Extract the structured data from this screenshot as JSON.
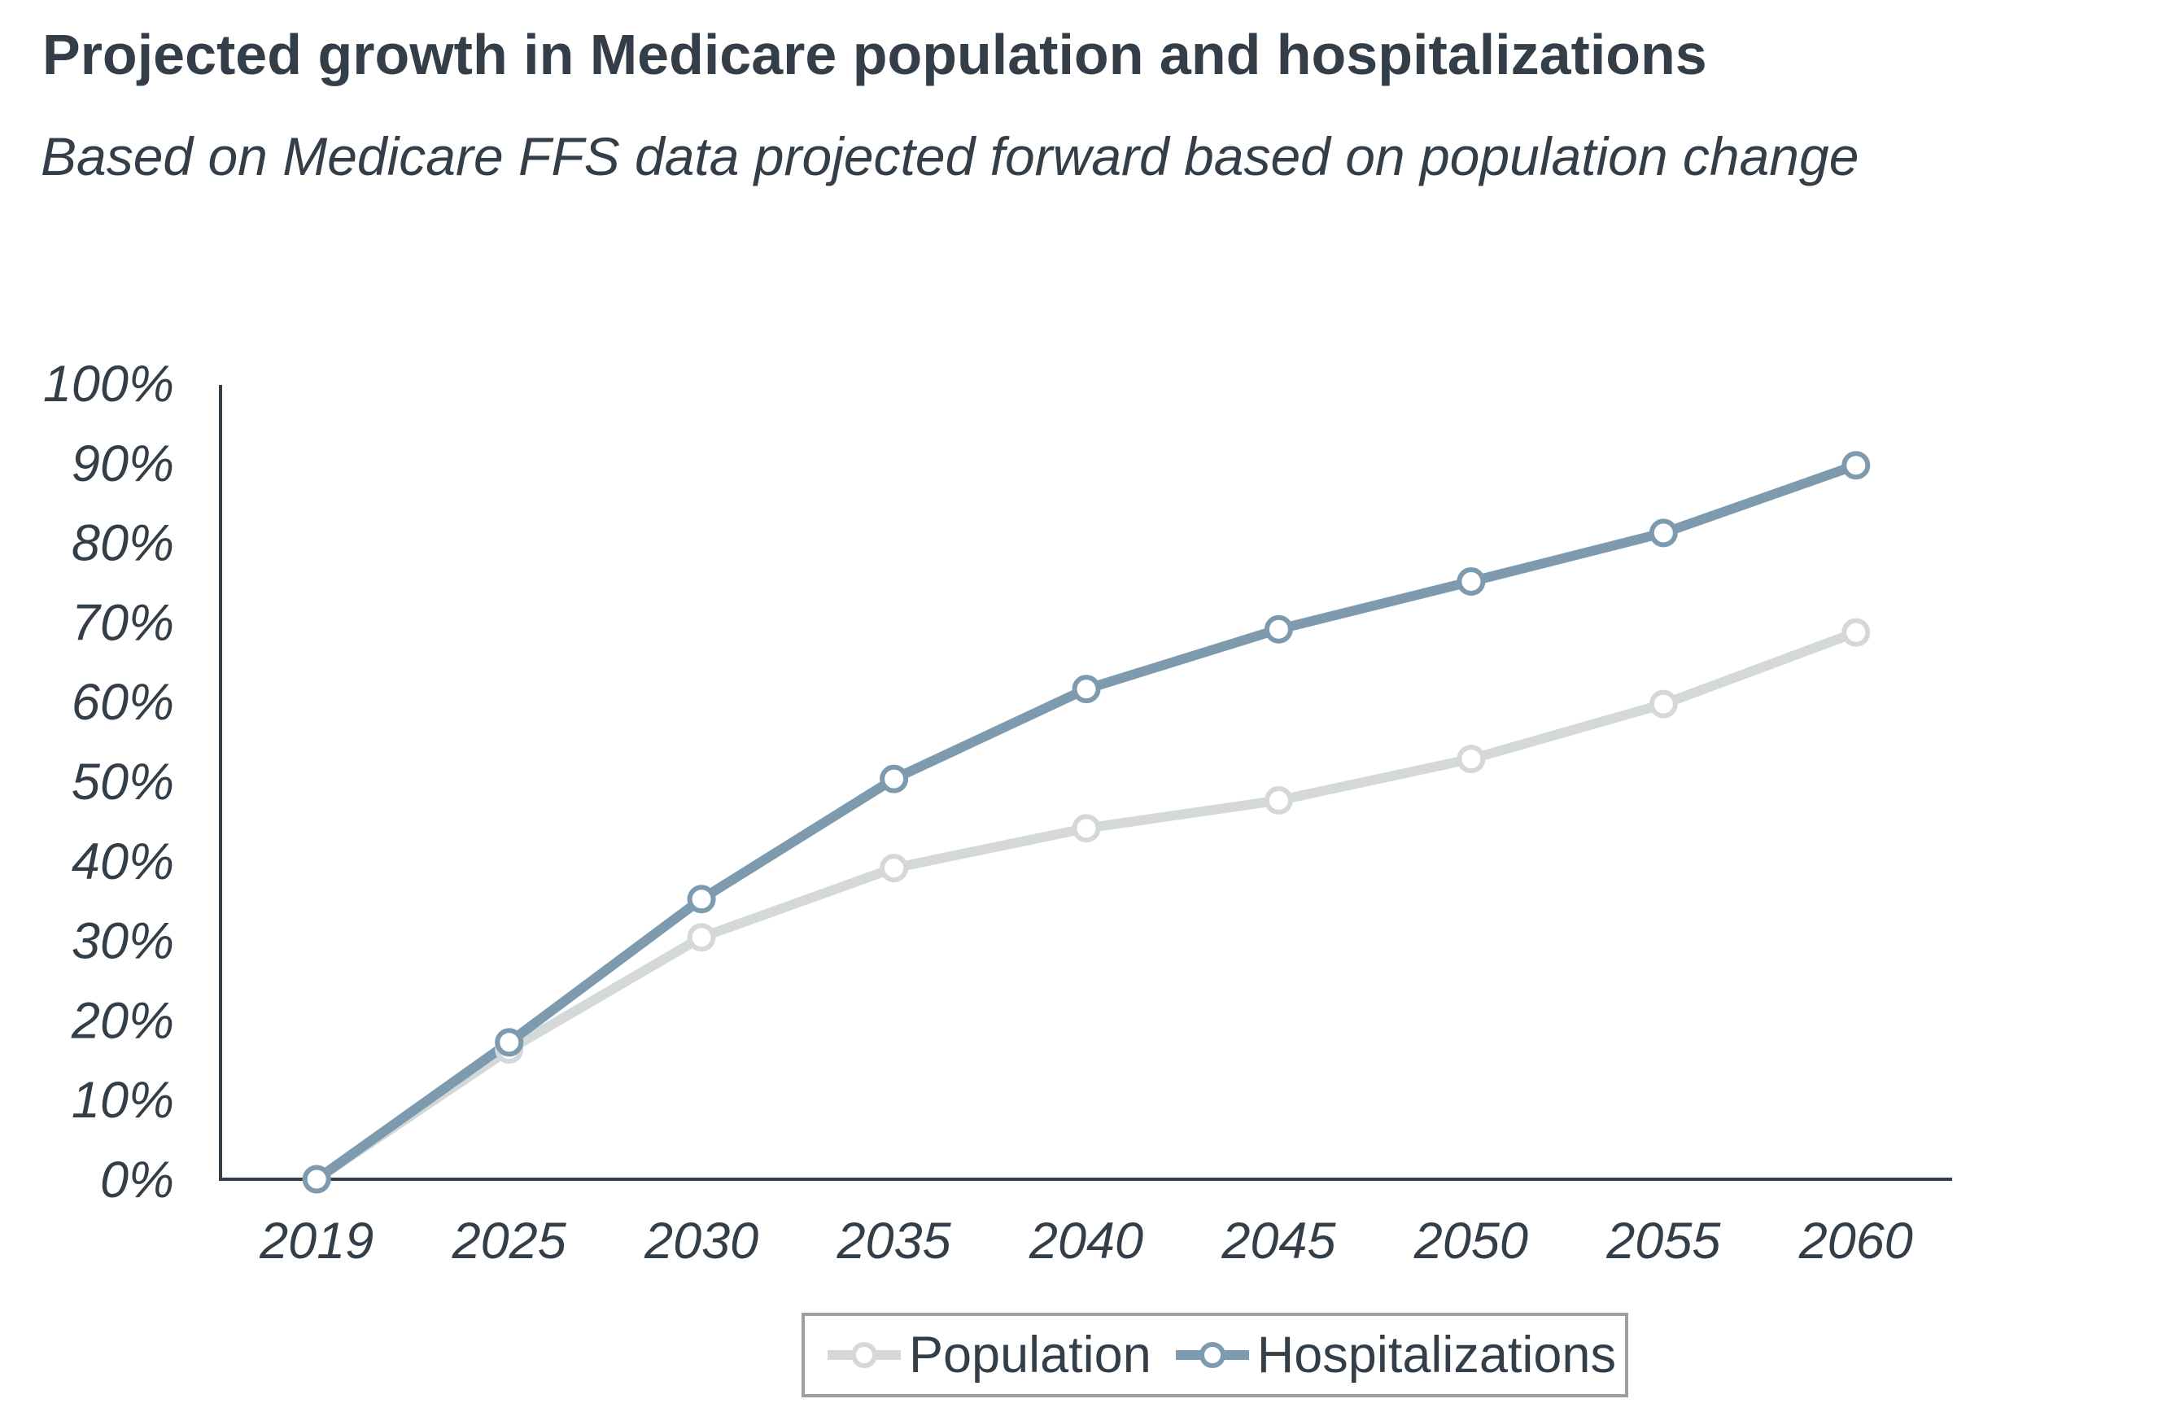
{
  "header": {
    "title": "Projected growth in Medicare population and hospitalizations",
    "subtitle": "Based on Medicare FFS data projected forward based on population change"
  },
  "colors": {
    "text": "#333e48",
    "axis": "#333e48",
    "population": "#d4d8d9",
    "hospitalizations": "#7d9aaf",
    "marker_fill": "#ffffff",
    "legend_border": "#9aa0a5"
  },
  "legend": {
    "items": [
      {
        "label": "Population",
        "series": "population"
      },
      {
        "label": "Hospitalizations",
        "series": "hospitalizations"
      }
    ]
  },
  "chart_data": {
    "type": "line",
    "title": "Projected growth in Medicare population and hospitalizations",
    "subtitle": "Based on Medicare FFS data projected forward based on population change",
    "xlabel": "",
    "ylabel": "",
    "categories": [
      "2019",
      "2025",
      "2030",
      "2035",
      "2040",
      "2045",
      "2050",
      "2055",
      "2060"
    ],
    "series": [
      {
        "name": "Population",
        "key": "population",
        "values": [
          0,
          16.3,
          30.4,
          39.1,
          44.1,
          47.6,
          52.8,
          59.7,
          68.7
        ]
      },
      {
        "name": "Hospitalizations",
        "key": "hospitalizations",
        "values": [
          0,
          17.2,
          35.2,
          50.3,
          61.6,
          69.1,
          75.1,
          81.2,
          89.7
        ]
      }
    ],
    "y_ticks": [
      "0%",
      "10%",
      "20%",
      "30%",
      "40%",
      "50%",
      "60%",
      "70%",
      "80%",
      "90%",
      "100%"
    ],
    "y_tick_values": [
      0,
      10,
      20,
      30,
      40,
      50,
      60,
      70,
      80,
      90,
      100
    ],
    "ylim": [
      0,
      100
    ],
    "grid": false,
    "markers": "hollow-circle",
    "legend_position": "bottom"
  }
}
